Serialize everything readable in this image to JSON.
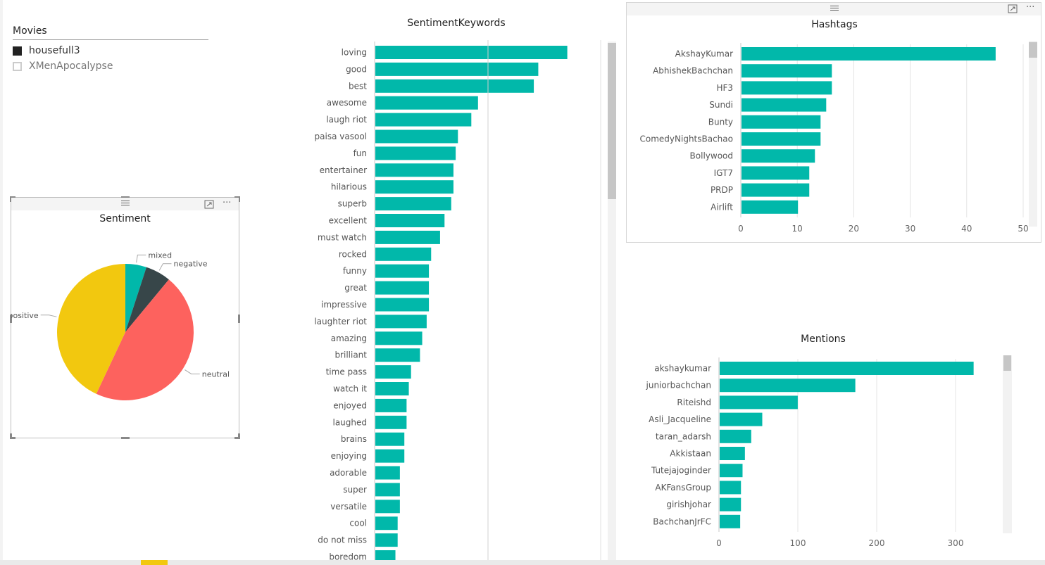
{
  "slicer": {
    "title": "Movies",
    "items": [
      {
        "label": "housefull3",
        "selected": true
      },
      {
        "label": "XMenApocalypse",
        "selected": false
      }
    ]
  },
  "sentiment": {
    "title": "Sentiment",
    "slices": [
      {
        "label": "mixed",
        "value": 5,
        "color": "#01b8aa"
      },
      {
        "label": "negative",
        "value": 6,
        "color": "#374649"
      },
      {
        "label": "neutral",
        "value": 46,
        "color": "#fd625e"
      },
      {
        "label": "positive",
        "value": 43,
        "color": "#f2c80f"
      }
    ]
  },
  "visual_icons": {
    "focus": "focus-mode-icon",
    "more": "···",
    "grip": "drag-grip-icon"
  },
  "chart_data": [
    {
      "type": "bar",
      "orientation": "horizontal",
      "title": "SentimentKeywords",
      "color": "#01b8aa",
      "categories": [
        "loving",
        "good",
        "best",
        "awesome",
        "laugh riot",
        "paisa vasool",
        "fun",
        "entertainer",
        "hilarious",
        "superb",
        "excellent",
        "must watch",
        "rocked",
        "funny",
        "great",
        "impressive",
        "laughter riot",
        "amazing",
        "brilliant",
        "time pass",
        "watch it",
        "enjoyed",
        "laughed",
        "brains",
        "enjoying",
        "adorable",
        "super",
        "versatile",
        "cool",
        "do not miss",
        "boredom"
      ],
      "values": [
        86,
        73,
        71,
        46,
        43,
        37,
        36,
        35,
        35,
        34,
        31,
        29,
        25,
        24,
        24,
        24,
        23,
        21,
        20,
        16,
        15,
        14,
        14,
        13,
        13,
        11,
        11,
        11,
        10,
        10,
        9
      ],
      "xlim": [
        0,
        100
      ]
    },
    {
      "type": "bar",
      "orientation": "horizontal",
      "title": "Hashtags",
      "color": "#01b8aa",
      "categories": [
        "AkshayKumar",
        "AbhishekBachchan",
        "HF3",
        "Sundi",
        "Bunty",
        "ComedyNightsBachao",
        "Bollywood",
        "IGT7",
        "PRDP",
        "Airlift"
      ],
      "values": [
        45,
        16,
        16,
        15,
        14,
        14,
        13,
        12,
        12,
        10
      ],
      "xlim": [
        0,
        50
      ],
      "xticks": [
        0,
        10,
        20,
        30,
        40,
        50
      ],
      "grid": true
    },
    {
      "type": "bar",
      "orientation": "horizontal",
      "title": "Mentions",
      "color": "#01b8aa",
      "categories": [
        "akshaykumar",
        "juniorbachchan",
        "Riteishd",
        "Asli_Jacqueline",
        "taran_adarsh",
        "Akkistaan",
        "Tutejajoginder",
        "AKFansGroup",
        "girishjohar",
        "BachchanJrFC"
      ],
      "values": [
        322,
        172,
        99,
        54,
        40,
        32,
        29,
        27,
        27,
        26
      ],
      "xlim": [
        0,
        350
      ],
      "xticks": [
        0,
        100,
        200,
        300
      ],
      "grid": true
    }
  ]
}
